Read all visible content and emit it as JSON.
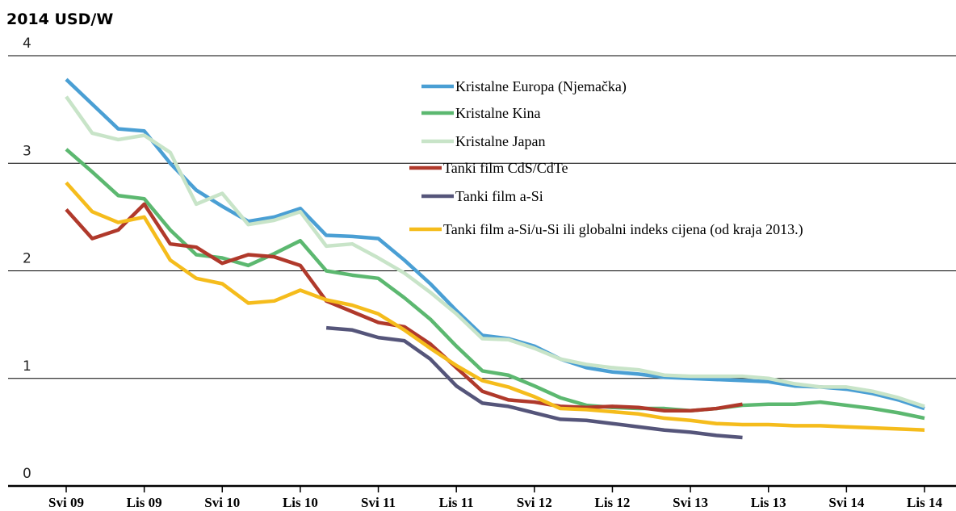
{
  "chart_data": {
    "type": "line",
    "title": "2014 USD/W",
    "x": [
      0,
      2,
      4,
      6,
      8,
      10,
      12,
      14,
      16,
      18,
      20,
      22,
      24,
      26,
      28,
      30,
      32,
      34,
      36,
      38,
      40,
      42,
      44,
      46,
      48,
      50,
      52,
      54,
      56,
      58,
      60,
      62,
      64,
      66
    ],
    "xlim": [
      0,
      66
    ],
    "xticks": [
      {
        "value": 0,
        "label": "Svi 09"
      },
      {
        "value": 6,
        "label": "Lis 09"
      },
      {
        "value": 12,
        "label": "Svi 10"
      },
      {
        "value": 18,
        "label": "Lis 10"
      },
      {
        "value": 24,
        "label": "Svi 11"
      },
      {
        "value": 30,
        "label": "Lis 11"
      },
      {
        "value": 36,
        "label": "Svi 12"
      },
      {
        "value": 42,
        "label": "Lis 12"
      },
      {
        "value": 48,
        "label": "Svi 13"
      },
      {
        "value": 54,
        "label": "Lis 13"
      },
      {
        "value": 60,
        "label": "Svi 14"
      },
      {
        "value": 66,
        "label": "Lis 14"
      }
    ],
    "ylim": [
      0,
      4
    ],
    "yticks": [
      0,
      1,
      2,
      3,
      4
    ],
    "grid": true,
    "series": [
      {
        "name": "Kristalne Europa (Njemačka)",
        "color": "#4a9fd4",
        "values": [
          3.78,
          3.55,
          3.32,
          3.3,
          3.0,
          2.75,
          2.6,
          2.46,
          2.5,
          2.58,
          2.33,
          2.32,
          2.3,
          2.1,
          1.88,
          1.63,
          1.4,
          1.37,
          1.3,
          1.18,
          1.1,
          1.06,
          1.04,
          1.01,
          1.0,
          0.99,
          0.98,
          0.97,
          0.93,
          0.92,
          0.9,
          0.86,
          0.8,
          0.72
        ]
      },
      {
        "name": "Kristalne Kina",
        "color": "#5cb870",
        "values": [
          3.13,
          2.92,
          2.7,
          2.67,
          2.38,
          2.15,
          2.12,
          2.05,
          2.16,
          2.28,
          2.0,
          1.96,
          1.93,
          1.75,
          1.55,
          1.3,
          1.07,
          1.03,
          0.93,
          0.82,
          0.75,
          0.73,
          0.72,
          0.72,
          0.7,
          0.72,
          0.75,
          0.76,
          0.76,
          0.78,
          0.75,
          0.72,
          0.68,
          0.63
        ]
      },
      {
        "name": "Kristalne Japan",
        "color": "#c8e4c8",
        "values": [
          3.62,
          3.28,
          3.22,
          3.26,
          3.1,
          2.62,
          2.72,
          2.43,
          2.47,
          2.55,
          2.23,
          2.25,
          2.12,
          1.98,
          1.8,
          1.6,
          1.37,
          1.36,
          1.28,
          1.18,
          1.13,
          1.1,
          1.08,
          1.03,
          1.02,
          1.02,
          1.02,
          1.0,
          0.95,
          0.92,
          0.92,
          0.88,
          0.82,
          0.74
        ]
      },
      {
        "name": "Tanki film CdS/CdTe",
        "color": "#b0392b",
        "values": [
          2.57,
          2.3,
          2.38,
          2.62,
          2.25,
          2.22,
          2.07,
          2.15,
          2.13,
          2.05,
          1.72,
          1.62,
          1.52,
          1.48,
          1.32,
          1.1,
          0.88,
          0.8,
          0.78,
          0.74,
          0.73,
          0.74,
          0.73,
          0.7,
          0.7,
          0.72,
          0.76,
          null,
          null,
          null,
          null,
          null,
          null,
          null
        ]
      },
      {
        "name": "Tanki film a-Si",
        "color": "#55557a",
        "values": [
          null,
          null,
          null,
          null,
          null,
          null,
          null,
          null,
          null,
          null,
          1.47,
          1.45,
          1.38,
          1.35,
          1.18,
          0.93,
          0.77,
          0.74,
          0.68,
          0.62,
          0.61,
          0.58,
          0.55,
          0.52,
          0.5,
          0.47,
          0.45,
          null,
          null,
          null,
          null,
          null,
          null,
          null
        ]
      },
      {
        "name": "Tanki film a-Si/u-Si ili globalni indeks cijena (od kraja 2013.)",
        "color": "#f5bc1c",
        "values": [
          2.82,
          2.55,
          2.45,
          2.5,
          2.1,
          1.93,
          1.88,
          1.7,
          1.72,
          1.82,
          1.73,
          1.68,
          1.6,
          1.45,
          1.28,
          1.12,
          0.98,
          0.92,
          0.83,
          0.72,
          0.71,
          0.69,
          0.67,
          0.63,
          0.61,
          0.58,
          0.57,
          0.57,
          0.56,
          0.56,
          0.55,
          0.54,
          0.53,
          0.52
        ]
      }
    ]
  }
}
